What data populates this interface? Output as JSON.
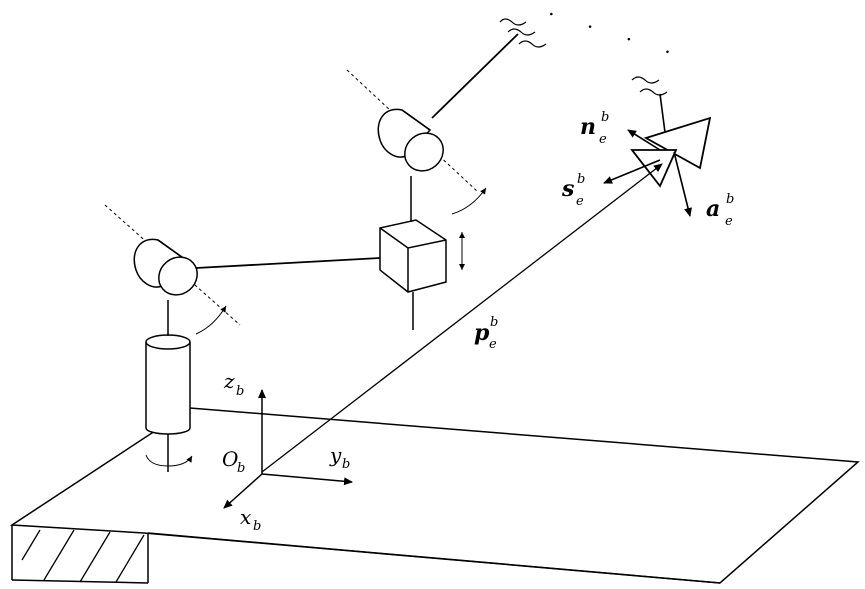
{
  "colors": {
    "ink": "#000000",
    "background": "#ffffff"
  },
  "labels": {
    "z_axis": "z",
    "z_sub": "b",
    "origin": "O",
    "origin_sub": "b",
    "y_axis": "y",
    "y_sub": "b",
    "x_axis": "x",
    "x_sub": "b",
    "position_vector": "p",
    "position_sup": "b",
    "position_sub": "e",
    "normal_vector": "n",
    "normal_sup": "b",
    "normal_sub": "e",
    "sliding_vector": "s",
    "sliding_sup": "b",
    "sliding_sub": "e",
    "approach_vector": "a",
    "approach_sup": "b",
    "approach_sub": "e",
    "continuation_dots": ". . . ."
  }
}
